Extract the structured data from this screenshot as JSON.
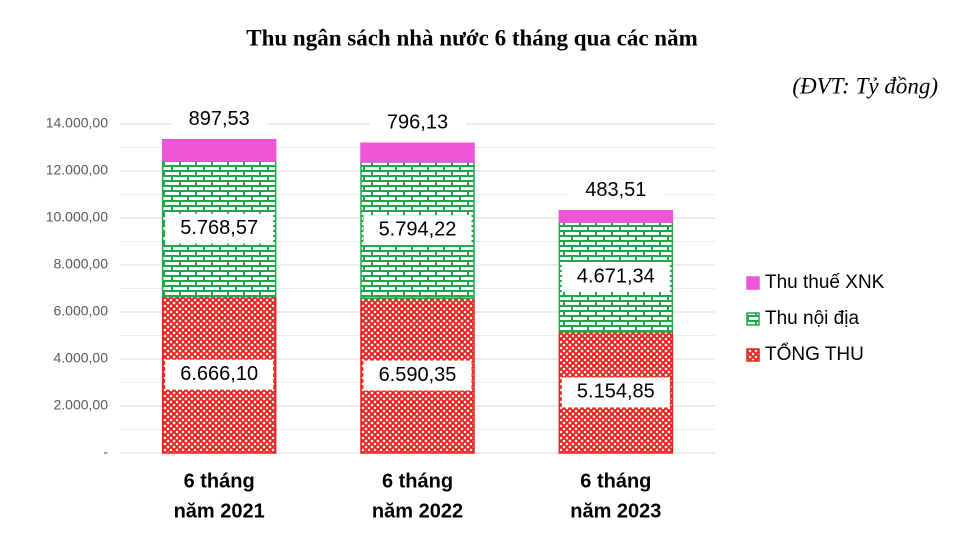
{
  "chart_data": {
    "type": "stacked_bar",
    "title": "Thu ngân sách nhà nước 6 tháng qua các năm",
    "subtitle": "(ĐVT: Tỷ đồng)",
    "categories": [
      [
        "6 tháng",
        "năm 2021"
      ],
      [
        "6 tháng",
        "năm 2022"
      ],
      [
        "6 tháng",
        "năm 2023"
      ]
    ],
    "series": [
      {
        "name": "TỔNG THU",
        "color": "#e8231f",
        "pattern": "crosshatch",
        "values": [
          6666.1,
          6590.35,
          5154.85
        ],
        "value_labels": [
          "6.666,10",
          "6.590,35",
          "5.154,85"
        ]
      },
      {
        "name": "Thu nội địa",
        "color": "#1ea84a",
        "pattern": "brick",
        "values": [
          5768.57,
          5794.22,
          4671.34
        ],
        "value_labels": [
          "5.768,57",
          "5.794,22",
          "4.671,34"
        ]
      },
      {
        "name": "Thu thuế XNK",
        "color": "#ee55d8",
        "pattern": "solid",
        "values": [
          897.53,
          796.13,
          483.51
        ],
        "value_labels": [
          "897,53",
          "796,13",
          "483,51"
        ]
      }
    ],
    "ylim": [
      0,
      14000
    ],
    "yticks": [
      {
        "value": 0,
        "label": "-"
      },
      {
        "value": 2000,
        "label": "2.000,00"
      },
      {
        "value": 4000,
        "label": "4.000,00"
      },
      {
        "value": 6000,
        "label": "6.000,00"
      },
      {
        "value": 8000,
        "label": "8.000,00"
      },
      {
        "value": 10000,
        "label": "10.000,00"
      },
      {
        "value": 12000,
        "label": "12.000,00"
      },
      {
        "value": 14000,
        "label": "14.000,00"
      }
    ],
    "grid": true,
    "legend": "right"
  }
}
